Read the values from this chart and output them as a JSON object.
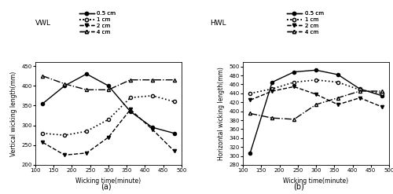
{
  "x": [
    120,
    180,
    240,
    300,
    360,
    420,
    480
  ],
  "vwl_05cm": [
    355,
    400,
    430,
    400,
    335,
    295,
    280
  ],
  "vwl_1cm": [
    280,
    275,
    285,
    315,
    370,
    375,
    360
  ],
  "vwl_2cm": [
    257,
    225,
    230,
    270,
    340,
    290,
    235
  ],
  "vwl_4cm": [
    425,
    405,
    390,
    390,
    415,
    415,
    415
  ],
  "hwl_05cm": [
    307,
    465,
    488,
    492,
    482,
    450,
    435
  ],
  "hwl_1cm": [
    440,
    450,
    465,
    470,
    465,
    448,
    440
  ],
  "hwl_2cm": [
    425,
    445,
    455,
    438,
    415,
    430,
    410
  ],
  "hwl_4cm": [
    395,
    385,
    382,
    415,
    430,
    445,
    445
  ],
  "vwl_ylim": [
    200,
    460
  ],
  "hwl_ylim": [
    280,
    510
  ],
  "xlim": [
    100,
    500
  ],
  "xticks": [
    100,
    150,
    200,
    250,
    300,
    350,
    400,
    450,
    500
  ],
  "vwl_yticks": [
    200,
    250,
    300,
    350,
    400,
    450
  ],
  "hwl_yticks": [
    280,
    300,
    320,
    340,
    360,
    380,
    400,
    420,
    440,
    460,
    480,
    500
  ],
  "xlabel": "Wicking time(minute)",
  "vwl_ylabel": "Vertical wicking length(mm)",
  "hwl_ylabel": "Horizontal wicking length(mm)",
  "vwl_title": "VWL",
  "hwl_title": "HWL",
  "label_a": "(a)",
  "label_b": "(b)",
  "legend_labels": [
    "0.5 cm",
    "1 cm",
    "2 cm",
    "4 cm"
  ]
}
